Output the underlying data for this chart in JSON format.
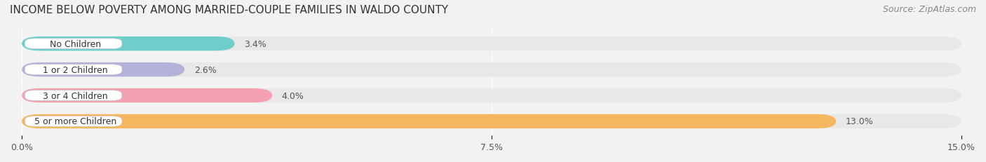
{
  "title": "INCOME BELOW POVERTY AMONG MARRIED-COUPLE FAMILIES IN WALDO COUNTY",
  "source": "Source: ZipAtlas.com",
  "categories": [
    "No Children",
    "1 or 2 Children",
    "3 or 4 Children",
    "5 or more Children"
  ],
  "values": [
    3.4,
    2.6,
    4.0,
    13.0
  ],
  "bar_colors": [
    "#6ecfca",
    "#b3b3d9",
    "#f4a0b0",
    "#f5b660"
  ],
  "label_colors": [
    "#6ecfca",
    "#b3b3d9",
    "#f4a0b0",
    "#f5b660"
  ],
  "xlim": [
    0,
    15.0
  ],
  "xticks": [
    0.0,
    7.5,
    15.0
  ],
  "xtick_labels": [
    "0.0%",
    "7.5%",
    "15.0%"
  ],
  "bg_color": "#f2f2f2",
  "bar_bg_color": "#e8e8e8",
  "title_fontsize": 11,
  "source_fontsize": 9,
  "label_fontsize": 9,
  "tick_fontsize": 9,
  "bar_height": 0.55
}
